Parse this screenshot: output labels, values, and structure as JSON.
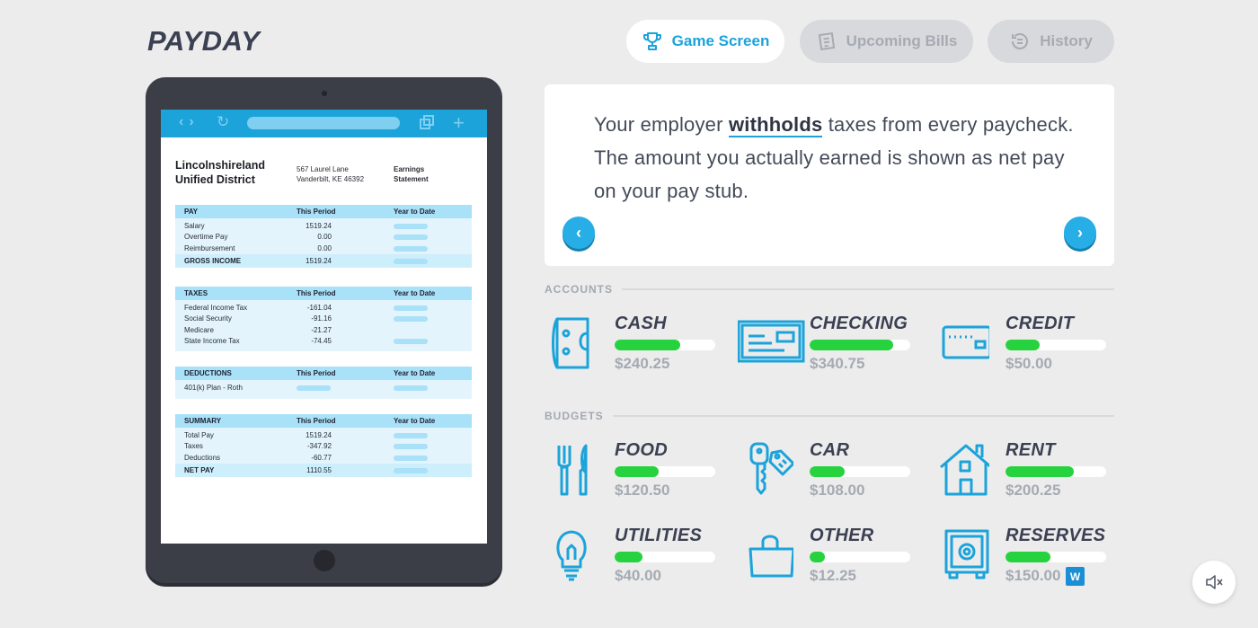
{
  "logo": "PAYDAY",
  "nav": {
    "game": "Game Screen",
    "bills": "Upcoming Bills",
    "history": "History"
  },
  "paystub": {
    "org": "Lincolnshireland Unified District",
    "address1": "567 Laurel Lane",
    "address2": "Vanderbilt, KE 46392",
    "statement1": "Earnings",
    "statement2": "Statement",
    "col_period": "This Period",
    "col_ytd": "Year to Date",
    "pay": {
      "title": "PAY",
      "rows": [
        {
          "label": "Salary",
          "value": "1519.24"
        },
        {
          "label": "Overtime Pay",
          "value": "0.00"
        },
        {
          "label": "Reimbursement",
          "value": "0.00"
        }
      ],
      "total_label": "GROSS INCOME",
      "total_value": "1519.24"
    },
    "taxes": {
      "title": "TAXES",
      "rows": [
        {
          "label": "Federal Income Tax",
          "value": "-161.04"
        },
        {
          "label": "Social Security",
          "value": "-91.16"
        },
        {
          "label": "Medicare",
          "value": "-21.27"
        },
        {
          "label": "State Income Tax",
          "value": "-74.45"
        }
      ]
    },
    "deductions": {
      "title": "DEDUCTIONS",
      "rows": [
        {
          "label": "401(k) Plan - Roth"
        }
      ]
    },
    "summary": {
      "title": "SUMMARY",
      "rows": [
        {
          "label": "Total Pay",
          "value": "1519.24"
        },
        {
          "label": "Taxes",
          "value": "-347.92"
        },
        {
          "label": "Deductions",
          "value": "-60.77"
        }
      ],
      "total_label": "NET PAY",
      "total_value": "1110.55"
    }
  },
  "message": {
    "before": "Your employer ",
    "keyword": "withholds",
    "after": " taxes from every paycheck. The amount you actually earned is shown as net pay on your pay stub."
  },
  "accounts_label": "ACCOUNTS",
  "budgets_label": "BUDGETS",
  "accounts": [
    {
      "name": "CASH",
      "amount": "$240.25",
      "level": 0.65,
      "icon": "cash-icon"
    },
    {
      "name": "CHECKING",
      "amount": "$340.75",
      "level": 0.83,
      "icon": "check-icon"
    },
    {
      "name": "CREDIT",
      "amount": "$50.00",
      "level": 0.34,
      "icon": "credit-card-icon"
    }
  ],
  "budgets": [
    {
      "name": "FOOD",
      "amount": "$120.50",
      "level": 0.44,
      "icon": "fork-knife-icon"
    },
    {
      "name": "CAR",
      "amount": "$108.00",
      "level": 0.35,
      "icon": "car-keys-icon"
    },
    {
      "name": "RENT",
      "amount": "$200.25",
      "level": 0.68,
      "icon": "house-icon"
    },
    {
      "name": "UTILITIES",
      "amount": "$40.00",
      "level": 0.28,
      "icon": "lightbulb-icon"
    },
    {
      "name": "OTHER",
      "amount": "$12.25",
      "level": 0.15,
      "icon": "shopping-bag-icon"
    },
    {
      "name": "RESERVES",
      "amount": "$150.00",
      "level": 0.45,
      "icon": "safe-icon"
    }
  ],
  "reserves_badge": "W",
  "colors": {
    "accent": "#1ba3da",
    "bar": "#27d23f"
  }
}
